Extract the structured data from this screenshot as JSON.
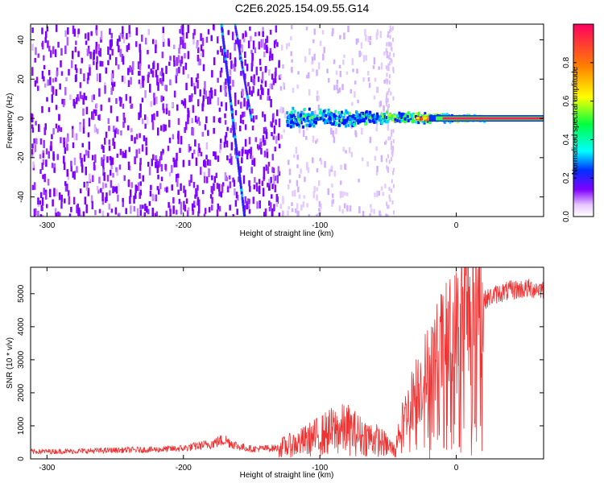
{
  "title": "C2E6.2025.154.09.55.G14",
  "chart_data": [
    {
      "type": "heatmap",
      "xlabel": "Height of straight line (km)",
      "ylabel": "Frequency (Hz)",
      "xlim": [
        -312,
        64
      ],
      "ylim": [
        -50,
        48
      ],
      "xticks": [
        -300,
        -200,
        -100,
        0
      ],
      "yticks": [
        -40,
        -20,
        0,
        20,
        40
      ],
      "colorbar": {
        "label": "Normalized spectral amplitude",
        "range": [
          0.0,
          1.0
        ],
        "ticks": [
          0.0,
          0.2,
          0.4,
          0.6,
          0.8
        ],
        "colors": [
          "#ffffff",
          "#8000ff",
          "#0040ff",
          "#00ffff",
          "#00ff40",
          "#ffff00",
          "#ff8000",
          "#ff0060"
        ]
      },
      "features": {
        "diffuse_region_x": [
          -312,
          -130
        ],
        "faint_region_x": [
          -130,
          -50
        ],
        "signal_band_x": [
          -125,
          64
        ],
        "signal_band_freq": 0,
        "diagonal_line_1": {
          "x": [
            -172,
            -155
          ],
          "y": [
            48,
            -50
          ]
        },
        "diagonal_line_2": {
          "x": [
            -162,
            -150
          ],
          "y": [
            48,
            0
          ]
        }
      }
    },
    {
      "type": "line",
      "xlabel": "Height of straight line (km)",
      "ylabel": "SNR (10 * v/v)",
      "xlim": [
        -312,
        64
      ],
      "ylim": [
        0,
        5800
      ],
      "xticks": [
        -300,
        -200,
        -100,
        0
      ],
      "yticks": [
        0,
        1000,
        2000,
        3000,
        4000,
        5000
      ],
      "series": [
        {
          "color": "#ee3333",
          "x": [
            -312,
            -280,
            -250,
            -220,
            -200,
            -180,
            -170,
            -160,
            -150,
            -130,
            -115,
            -100,
            -90,
            -80,
            -70,
            -60,
            -50,
            -45,
            -40,
            -30,
            -20,
            -10,
            0,
            10,
            20,
            30,
            40,
            50,
            64
          ],
          "y": [
            220,
            230,
            260,
            280,
            320,
            450,
            580,
            380,
            300,
            330,
            480,
            700,
            850,
            900,
            700,
            600,
            400,
            250,
            1100,
            2000,
            2700,
            3400,
            3800,
            4600,
            4800,
            5000,
            5100,
            5150,
            5150
          ]
        }
      ]
    }
  ]
}
